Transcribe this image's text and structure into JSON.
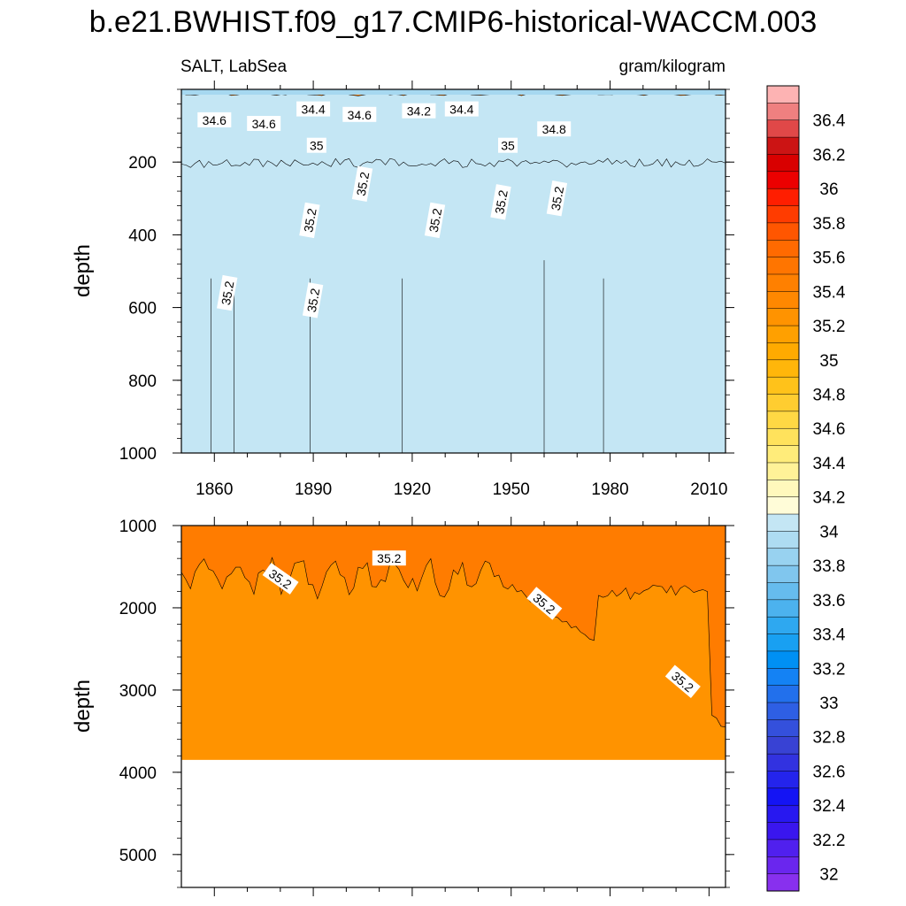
{
  "chart_data": {
    "type": "heatmap",
    "title": "b.e21.BWHIST.f09_g17.CMIP6-historical-WACCM.003",
    "left_subtitle": "SALT, LabSea",
    "right_subtitle": "gram/kilogram",
    "ylabel": "depth",
    "panels": [
      {
        "name": "upper",
        "ylim": [
          0,
          1000
        ],
        "xlim": [
          1850,
          2015
        ],
        "ytick_labels": [
          "200",
          "400",
          "600",
          "800",
          "1000"
        ],
        "xtick_labels": [
          "1860",
          "1890",
          "1920",
          "1950",
          "1980",
          "2010"
        ],
        "contour_labels": [
          {
            "text": "34.6",
            "year": 1860,
            "depth": 85
          },
          {
            "text": "34.6",
            "year": 1875,
            "depth": 95
          },
          {
            "text": "34.4",
            "year": 1890,
            "depth": 55
          },
          {
            "text": "34.6",
            "year": 1904,
            "depth": 70
          },
          {
            "text": "34.2",
            "year": 1922,
            "depth": 60
          },
          {
            "text": "34.4",
            "year": 1935,
            "depth": 55
          },
          {
            "text": "34.8",
            "year": 1963,
            "depth": 110
          },
          {
            "text": "35",
            "year": 1891,
            "depth": 155
          },
          {
            "text": "35",
            "year": 1949,
            "depth": 155
          },
          {
            "text": "35.2",
            "year": 1864,
            "depth": 560
          },
          {
            "text": "35.2",
            "year": 1889,
            "depth": 360
          },
          {
            "text": "35.2",
            "year": 1890,
            "depth": 580
          },
          {
            "text": "35.2",
            "year": 1905,
            "depth": 260
          },
          {
            "text": "35.2",
            "year": 1927,
            "depth": 360
          },
          {
            "text": "35.2",
            "year": 1947,
            "depth": 310
          },
          {
            "text": "35.2",
            "year": 1964,
            "depth": 300
          }
        ]
      },
      {
        "name": "lower",
        "ylim": [
          1000,
          5400
        ],
        "xlim": [
          1850,
          2015
        ],
        "ytick_labels": [
          "1000",
          "2000",
          "3000",
          "4000",
          "5000"
        ],
        "ocean_bottom_depth": 3850,
        "contour_labels": [
          {
            "text": "35.2",
            "year": 1880,
            "depth": 1650
          },
          {
            "text": "35.2",
            "year": 1913,
            "depth": 1400
          },
          {
            "text": "35.2",
            "year": 1960,
            "depth": 1950
          },
          {
            "text": "35.2",
            "year": 2002,
            "depth": 2900
          }
        ]
      }
    ],
    "colorbar": {
      "labels": [
        "36.4",
        "36.2",
        "36",
        "35.8",
        "35.6",
        "35.4",
        "35.2",
        "35",
        "34.8",
        "34.6",
        "34.4",
        "34.2",
        "34",
        "33.8",
        "33.6",
        "33.4",
        "33.2",
        "33",
        "32.8",
        "32.6",
        "32.4",
        "32.2",
        "32"
      ],
      "colors_top_to_bottom": [
        "#fdb3b3",
        "#ef8080",
        "#e04848",
        "#cc1414",
        "#d90000",
        "#ec0000",
        "#ff1e00",
        "#ff3c00",
        "#ff5600",
        "#ff6a00",
        "#ff7500",
        "#ff8000",
        "#ff8800",
        "#ff9300",
        "#ffa000",
        "#ffaa00",
        "#ffb60a",
        "#ffc21a",
        "#ffcd30",
        "#ffd844",
        "#ffe25c",
        "#ffec7a",
        "#fff298",
        "#fff8bc",
        "#fffcd8",
        "#c4e6f4",
        "#aedcf2",
        "#98d2f0",
        "#80c6ee",
        "#66bcee",
        "#4cb2ee",
        "#2ea8f0",
        "#18a0f2",
        "#0090f4",
        "#1482f4",
        "#2270ec",
        "#2e5fe4",
        "#3450dc",
        "#3842d4",
        "#3232e0",
        "#2424ec",
        "#1414f4",
        "#2818f0",
        "#3a16ee",
        "#5020ee",
        "#6a26ee",
        "#8830ee"
      ]
    },
    "colors": {
      "deep_orange": "#ff7c00",
      "mid_orange": "#ff9300",
      "light_orange": "#ffa200",
      "surface_blue": "#a6d8f0"
    }
  }
}
